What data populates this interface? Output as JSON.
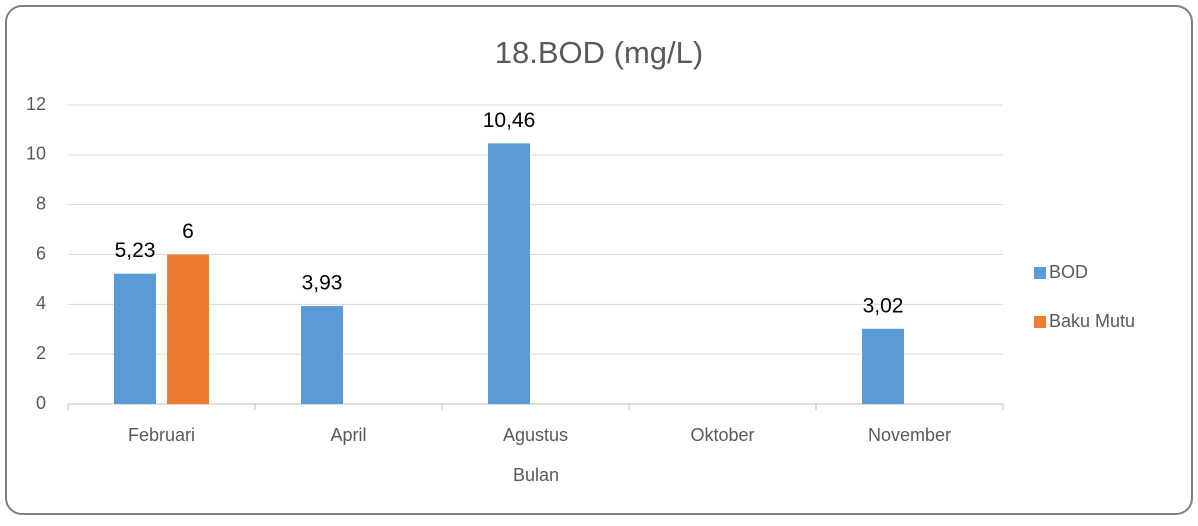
{
  "chart_data": {
    "type": "bar",
    "title": "18.BOD (mg/L)",
    "x_label": "Bulan",
    "categories": [
      "Februari",
      "April",
      "Agustus",
      "Oktober",
      "November"
    ],
    "series": [
      {
        "name": "BOD",
        "color": "#5b9bd5",
        "values": [
          5.23,
          3.93,
          10.46,
          null,
          3.02
        ],
        "value_labels": [
          "5,23",
          "3,93",
          "10,46",
          null,
          "3,02"
        ]
      },
      {
        "name": "Baku Mutu",
        "color": "#ed7d31",
        "values": [
          6,
          null,
          null,
          null,
          null
        ]
      }
    ],
    "ylim": [
      0,
      12
    ],
    "yticks": [
      0,
      2,
      4,
      6,
      8,
      10,
      12
    ],
    "grid": true,
    "legend": "right"
  }
}
